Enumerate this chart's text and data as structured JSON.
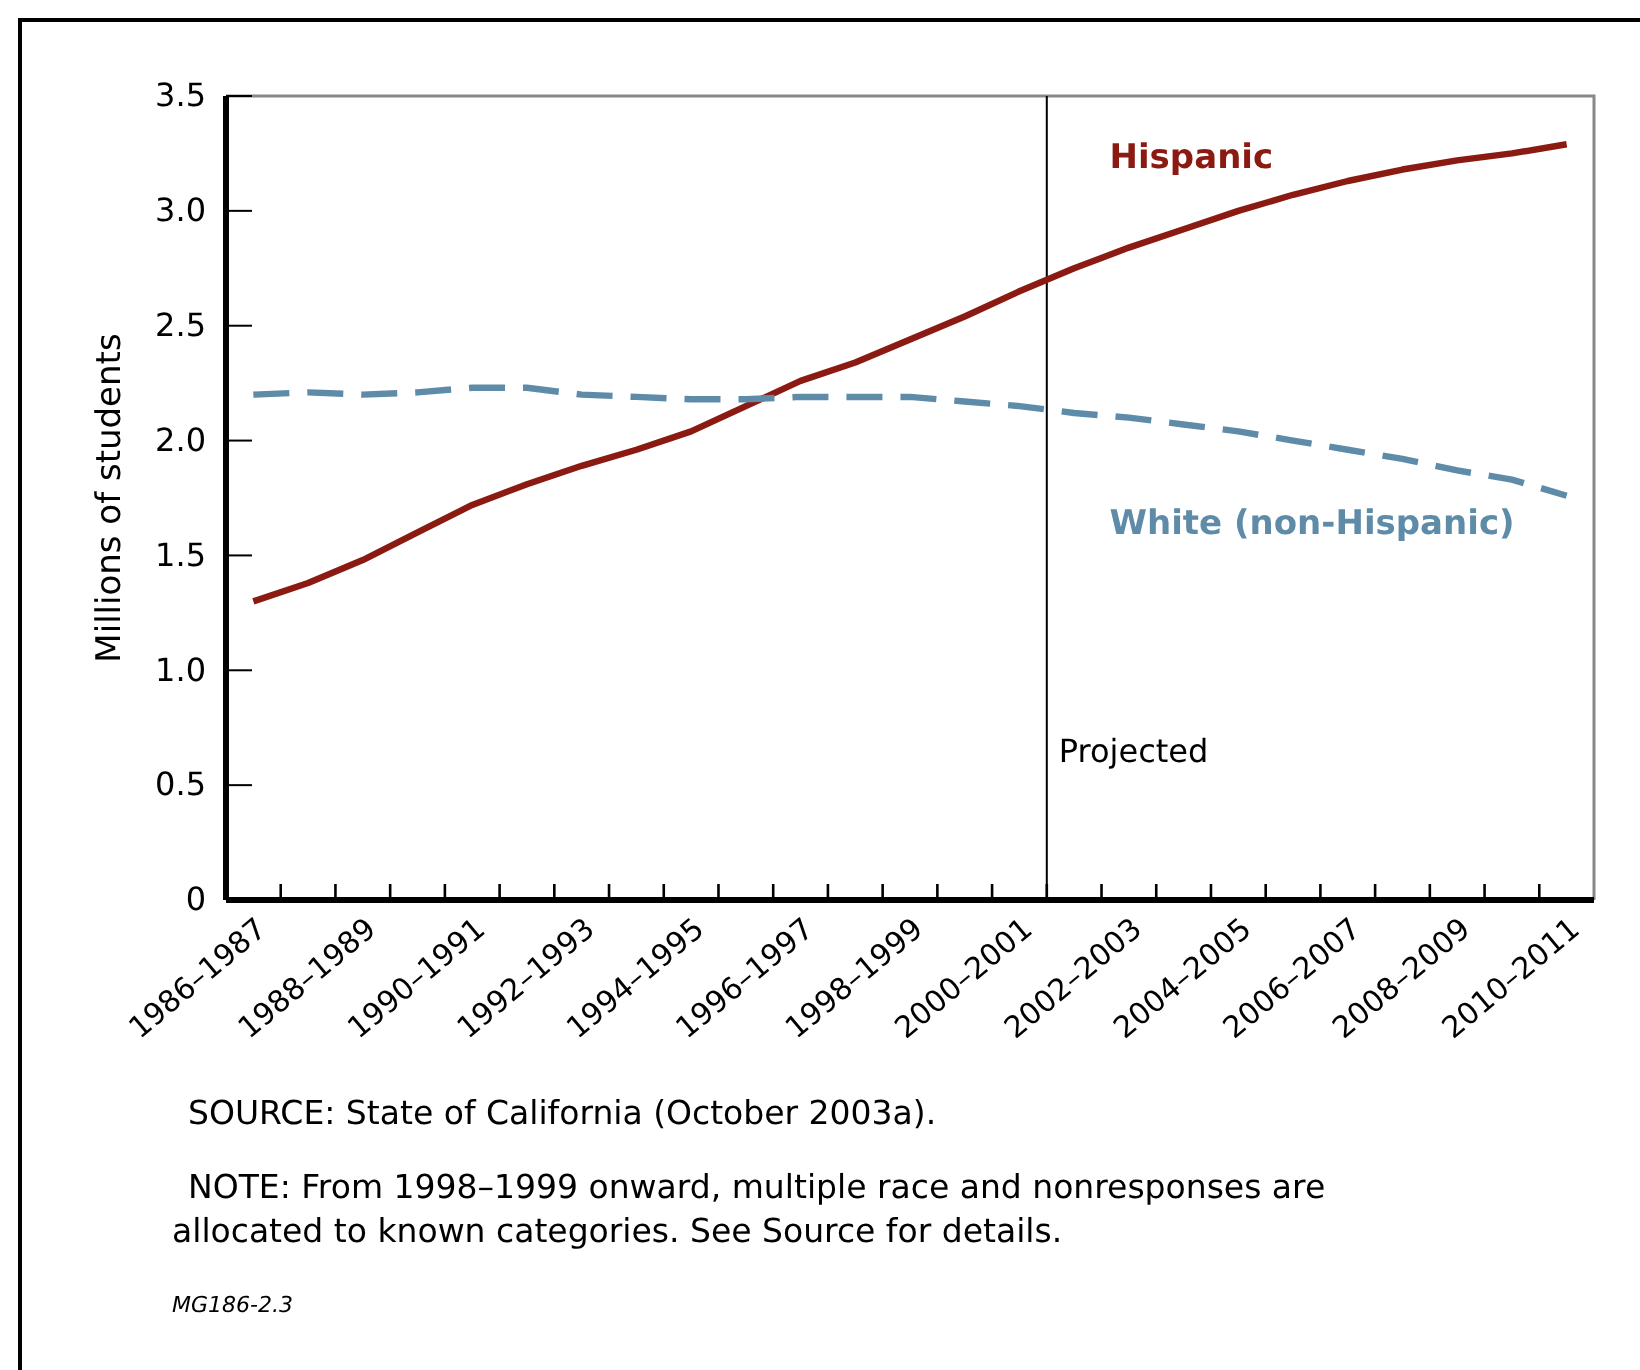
{
  "chart_data": {
    "type": "line",
    "ylabel": "Millions of students",
    "categories": [
      "1986–1987",
      null,
      "1988–1989",
      null,
      "1990–1991",
      null,
      "1992–1993",
      null,
      "1994–1995",
      null,
      "1996–1997",
      null,
      "1998–1999",
      null,
      "2000–2001",
      null,
      "2002–2003",
      null,
      "2004–2005",
      null,
      "2006–2007",
      null,
      "2008–2009",
      null,
      "2010–2011"
    ],
    "ylim": [
      0,
      3.5
    ],
    "yticks": [
      {
        "value": 0,
        "label": "0"
      },
      {
        "value": 0.5,
        "label": "0.5"
      },
      {
        "value": 1,
        "label": "1.0"
      },
      {
        "value": 1.5,
        "label": "1.5"
      },
      {
        "value": 2,
        "label": "2.0"
      },
      {
        "value": 2.5,
        "label": "2.5"
      },
      {
        "value": 3,
        "label": "3.0"
      },
      {
        "value": 3.5,
        "label": "3.5"
      }
    ],
    "series": [
      {
        "name": "Hispanic",
        "color": "#8b1a12",
        "line_style": "solid",
        "values": [
          1.3,
          1.38,
          1.48,
          1.6,
          1.72,
          1.81,
          1.89,
          1.96,
          2.04,
          2.15,
          2.26,
          2.34,
          2.44,
          2.54,
          2.65,
          2.75,
          2.84,
          2.92,
          3.0,
          3.07,
          3.13,
          3.18,
          3.22,
          3.25,
          3.29
        ]
      },
      {
        "name": "White (non-Hispanic)",
        "color": "#5e8ba8",
        "line_style": "dashed",
        "values": [
          2.2,
          2.21,
          2.2,
          2.21,
          2.23,
          2.23,
          2.2,
          2.19,
          2.18,
          2.18,
          2.19,
          2.19,
          2.19,
          2.17,
          2.15,
          2.12,
          2.1,
          2.07,
          2.04,
          2.0,
          1.96,
          1.92,
          1.87,
          1.83,
          1.76
        ]
      }
    ],
    "grid": false,
    "annotations": [
      "Projected",
      "SOURCE: State of California (October 2003a).",
      "NOTE: From 1998–1999 onward, multiple race and nonresponses are allocated to known categories. See Source for details.",
      "MG186-2.3"
    ]
  }
}
